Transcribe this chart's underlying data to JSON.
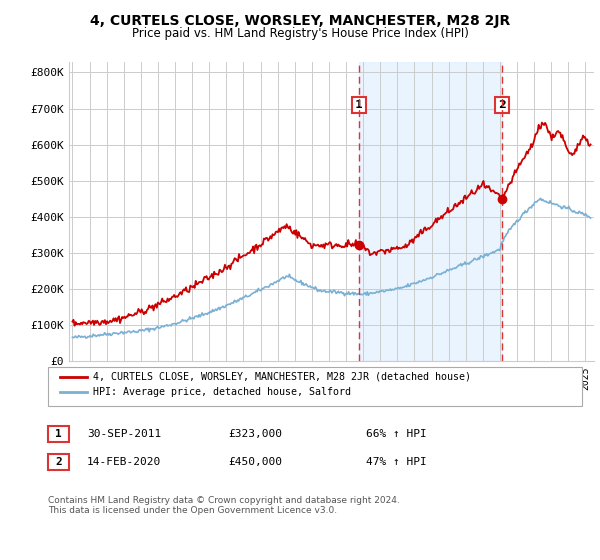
{
  "title": "4, CURTELS CLOSE, WORSLEY, MANCHESTER, M28 2JR",
  "subtitle": "Price paid vs. HM Land Registry's House Price Index (HPI)",
  "yticks": [
    0,
    100000,
    200000,
    300000,
    400000,
    500000,
    600000,
    700000,
    800000
  ],
  "ytick_labels": [
    "£0",
    "£100K",
    "£200K",
    "£300K",
    "£400K",
    "£500K",
    "£600K",
    "£700K",
    "£800K"
  ],
  "ylim": [
    0,
    830000
  ],
  "xlim_start": 1994.8,
  "xlim_end": 2025.5,
  "marker1_x": 2011.75,
  "marker1_y": 323000,
  "marker2_x": 2020.12,
  "marker2_y": 450000,
  "red_line_color": "#cc0000",
  "blue_line_color": "#7ab0d4",
  "marker_vline_color": "#dd3333",
  "grid_color": "#cccccc",
  "background_color": "#ffffff",
  "plot_bg_color": "#ffffff",
  "shade_color": "#ddeeff",
  "legend_label_red": "4, CURTELS CLOSE, WORSLEY, MANCHESTER, M28 2JR (detached house)",
  "legend_label_blue": "HPI: Average price, detached house, Salford",
  "footer": "Contains HM Land Registry data © Crown copyright and database right 2024.\nThis data is licensed under the Open Government Licence v3.0.",
  "table_rows": [
    {
      "num": "1",
      "date": "30-SEP-2011",
      "price": "£323,000",
      "hpi": "66% ↑ HPI"
    },
    {
      "num": "2",
      "date": "14-FEB-2020",
      "price": "£450,000",
      "hpi": "47% ↑ HPI"
    }
  ]
}
